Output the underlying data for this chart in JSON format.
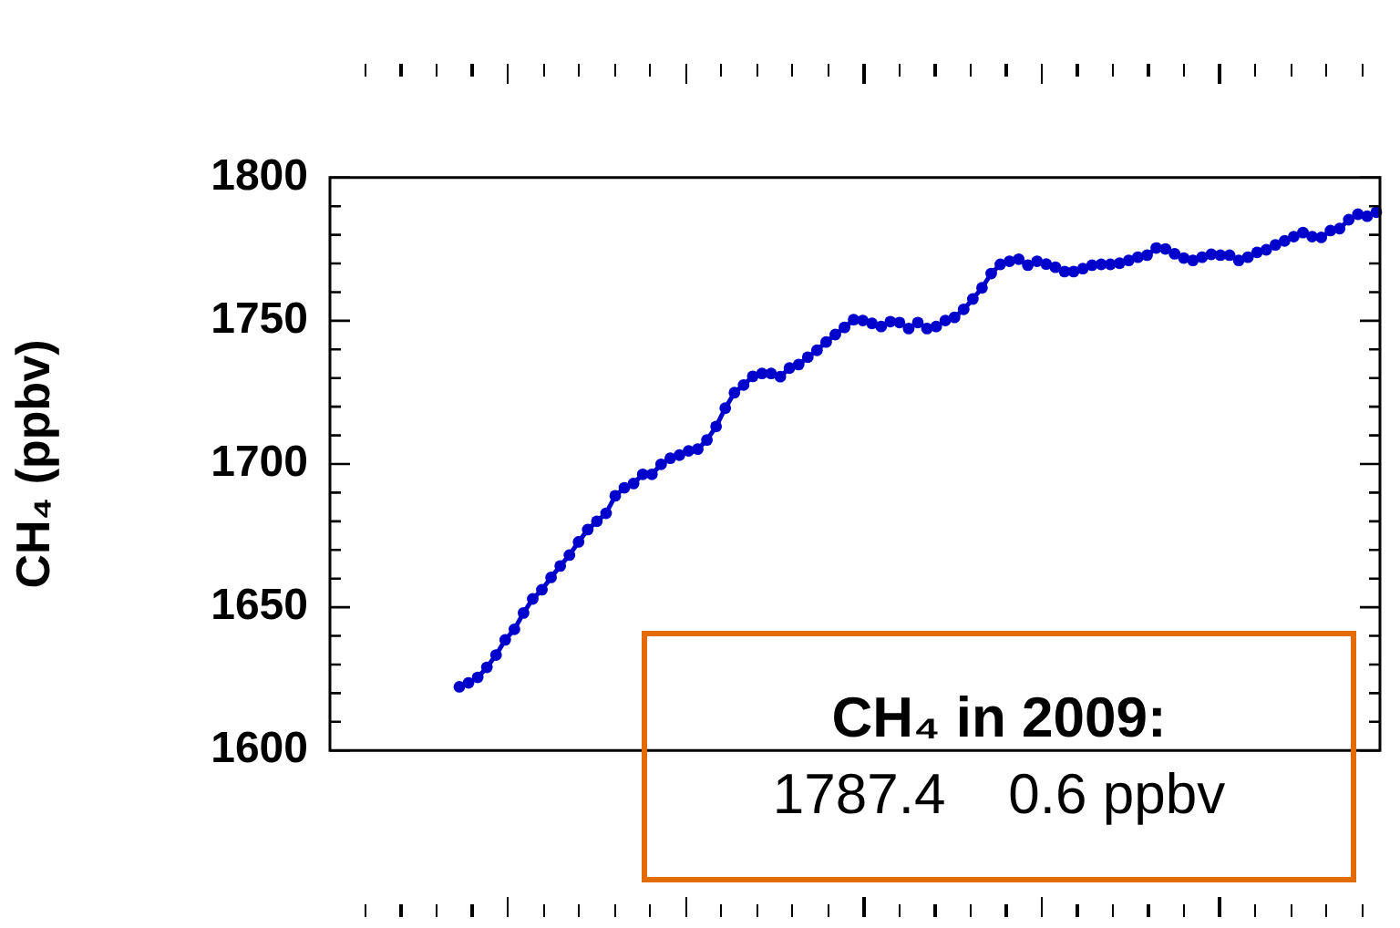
{
  "chart_data": {
    "type": "line",
    "ylabel": "CH₄ (ppbv)",
    "annotations": [
      "CH₄ in 2009:",
      "1787.4    0.6 ppbv"
    ],
    "categories": [
      null,
      null,
      null,
      null,
      null,
      null,
      null,
      null,
      null,
      null,
      null,
      null,
      null,
      null,
      null,
      null,
      null,
      null,
      null,
      null,
      null,
      null,
      null,
      null,
      null,
      null,
      null,
      null,
      null,
      null,
      null,
      null,
      null,
      null,
      null,
      null,
      null,
      null,
      null,
      null,
      null,
      null,
      null,
      null,
      null,
      null,
      null,
      null,
      null,
      null,
      null,
      null,
      null,
      null,
      null,
      null,
      null,
      null,
      null,
      null,
      null,
      null,
      null,
      null,
      null,
      null,
      null,
      null,
      null,
      null,
      null,
      null,
      null,
      null,
      null,
      null,
      null,
      null,
      null,
      null,
      null,
      null,
      null,
      null,
      null,
      null,
      null,
      null,
      null,
      null,
      null,
      null,
      null,
      null,
      null,
      null,
      null,
      null,
      null,
      null,
      null
    ],
    "ylim": [
      1600,
      1800
    ],
    "yticks": [
      1600,
      {
        "value": 1610,
        "label": null
      },
      {
        "value": 1620,
        "label": null
      },
      {
        "value": 1630,
        "label": null
      },
      {
        "value": 1640,
        "label": null
      },
      1650,
      {
        "value": 1660,
        "label": null
      },
      {
        "value": 1670,
        "label": null
      },
      {
        "value": 1680,
        "label": null
      },
      {
        "value": 1690,
        "label": null
      },
      1700,
      {
        "value": 1710,
        "label": null
      },
      {
        "value": 1720,
        "label": null
      },
      {
        "value": 1730,
        "label": null
      },
      {
        "value": 1740,
        "label": null
      },
      1750,
      {
        "value": 1760,
        "label": null
      },
      {
        "value": 1770,
        "label": null
      },
      {
        "value": 1780,
        "label": null
      },
      {
        "value": 1790,
        "label": null
      },
      1800
    ],
    "tick_labels": "y",
    "grid": false,
    "legend": false,
    "marker": "circle",
    "line_style": "solid",
    "series": [
      {
        "color": "#0000cc",
        "values": [
          1622.2,
          1623.6,
          1625.5,
          1629,
          1633.3,
          1638.6,
          1642.3,
          1648,
          1652.9,
          1656.1,
          1660.4,
          1664.4,
          1668.2,
          1672.8,
          1677.1,
          1680,
          1682.8,
          1688.9,
          1691.7,
          1693.2,
          1696.4,
          1696.4,
          1699.9,
          1702,
          1703.1,
          1704.6,
          1705.2,
          1708.4,
          1713.1,
          1719.5,
          1724.9,
          1727.6,
          1730.6,
          1731.6,
          1731.6,
          1730.5,
          1733.5,
          1734.7,
          1737.3,
          1739.7,
          1742.6,
          1745.2,
          1747.7,
          1750.4,
          1750.1,
          1749.1,
          1748,
          1749.7,
          1749.4,
          1747.3,
          1749.4,
          1747.3,
          1748,
          1750.1,
          1751.2,
          1754,
          1757.6,
          1761.5,
          1766.5,
          1769.7,
          1770.8,
          1771.5,
          1769.4,
          1770.8,
          1769.8,
          1768.7,
          1767.2,
          1767.2,
          1768.2,
          1769.4,
          1769.7,
          1769.7,
          1770.1,
          1771.1,
          1772.2,
          1772.9,
          1775.4,
          1775.1,
          1773.4,
          1771.9,
          1771.1,
          1772.2,
          1773.2,
          1772.9,
          1772.9,
          1771.1,
          1772.2,
          1773.9,
          1774.8,
          1776.5,
          1777.9,
          1779.4,
          1780.8,
          1779.4,
          1779.1,
          1781.5,
          1782.2,
          1785.3,
          1787.2,
          1786.5,
          1787.9
        ]
      }
    ]
  }
}
